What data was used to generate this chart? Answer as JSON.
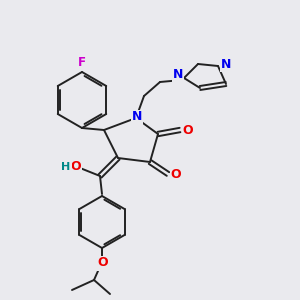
{
  "background_color": "#eaeaee",
  "bond_color": "#222222",
  "atom_colors": {
    "F": "#cc00cc",
    "N": "#0000ee",
    "O": "#ee0000",
    "H": "#008888",
    "C": "#222222"
  },
  "figsize": [
    3.0,
    3.0
  ],
  "dpi": 100
}
